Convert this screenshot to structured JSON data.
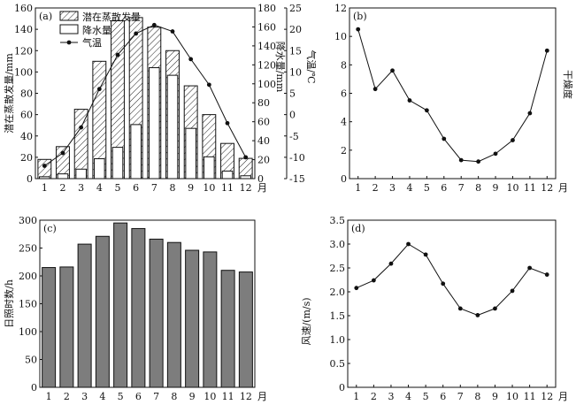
{
  "chart_data": [
    {
      "id": "a",
      "panel_label": "(a)",
      "type": "bar+line",
      "categories": [
        "1",
        "2",
        "3",
        "4",
        "5",
        "6",
        "7",
        "8",
        "9",
        "10",
        "11",
        "12"
      ],
      "x_unit": "月",
      "ylabel_left": "潜在蒸散发量/mm",
      "ylabel_right_inner": "降水量/mm",
      "ylabel_right_outer": "气温/℃",
      "ylim_left": [
        0,
        160
      ],
      "yticks_left": [
        "0",
        "20",
        "40",
        "60",
        "80",
        "100",
        "120",
        "140",
        "160"
      ],
      "ylim_right_inner": [
        0,
        180
      ],
      "yticks_right_inner": [
        "0",
        "20",
        "40",
        "60",
        "80",
        "100",
        "120",
        "140",
        "160",
        "180"
      ],
      "ylim_right_outer": [
        -15,
        25
      ],
      "yticks_right_outer": [
        "-15",
        "-10",
        "-5",
        "0",
        "5",
        "10",
        "15",
        "20",
        "25"
      ],
      "legend": [
        "潜在蒸散发量",
        "降水量",
        "气温"
      ],
      "legend_position": "top",
      "series": [
        {
          "name": "潜在蒸散发量",
          "style": "hatched-bar",
          "axis": "left",
          "values": [
            18,
            30,
            65,
            110,
            148,
            151,
            142,
            120,
            87,
            60,
            33,
            19
          ]
        },
        {
          "name": "降水量",
          "style": "white-bar",
          "axis": "right_inner",
          "values": [
            2,
            5,
            10,
            21,
            33,
            57,
            117,
            109,
            53,
            23,
            8,
            3
          ]
        },
        {
          "name": "气温",
          "style": "line-marker",
          "axis": "right_outer",
          "values": [
            -12,
            -9,
            -3,
            6,
            14,
            19,
            21,
            19.5,
            13,
            7,
            -2,
            -10
          ]
        }
      ]
    },
    {
      "id": "b",
      "panel_label": "(b)",
      "type": "line",
      "categories": [
        "1",
        "2",
        "3",
        "4",
        "5",
        "6",
        "7",
        "8",
        "9",
        "10",
        "11",
        "12"
      ],
      "x_unit": "月",
      "ylabel_right": "干燥度",
      "ylim": [
        0,
        12
      ],
      "yticks": [
        "0",
        "2",
        "4",
        "6",
        "8",
        "10",
        "12"
      ],
      "values": [
        10.5,
        6.3,
        7.6,
        5.5,
        4.8,
        2.8,
        1.3,
        1.2,
        1.75,
        2.7,
        4.6,
        9.0
      ]
    },
    {
      "id": "c",
      "panel_label": "(c)",
      "type": "bar",
      "categories": [
        "1",
        "2",
        "3",
        "4",
        "5",
        "6",
        "7",
        "8",
        "9",
        "10",
        "11",
        "12"
      ],
      "x_unit": "月",
      "ylabel": "日照时数/h",
      "ylim": [
        0,
        300
      ],
      "yticks": [
        "0",
        "50",
        "100",
        "150",
        "200",
        "250",
        "300"
      ],
      "values": [
        215,
        216,
        257,
        271,
        295,
        285,
        266,
        260,
        246,
        243,
        210,
        207
      ]
    },
    {
      "id": "d",
      "panel_label": "(d)",
      "type": "line",
      "categories": [
        "1",
        "2",
        "3",
        "4",
        "5",
        "6",
        "7",
        "8",
        "9",
        "10",
        "11",
        "12"
      ],
      "x_unit": "月",
      "ylabel": "风速/(m/s)",
      "ylim": [
        0,
        3.5
      ],
      "yticks": [
        "0",
        "0.5",
        "1.0",
        "1.5",
        "2.0",
        "2.5",
        "3.0",
        "3.5"
      ],
      "values": [
        2.08,
        2.24,
        2.59,
        3.0,
        2.78,
        2.17,
        1.65,
        1.51,
        1.65,
        2.02,
        2.5,
        2.36
      ]
    }
  ]
}
